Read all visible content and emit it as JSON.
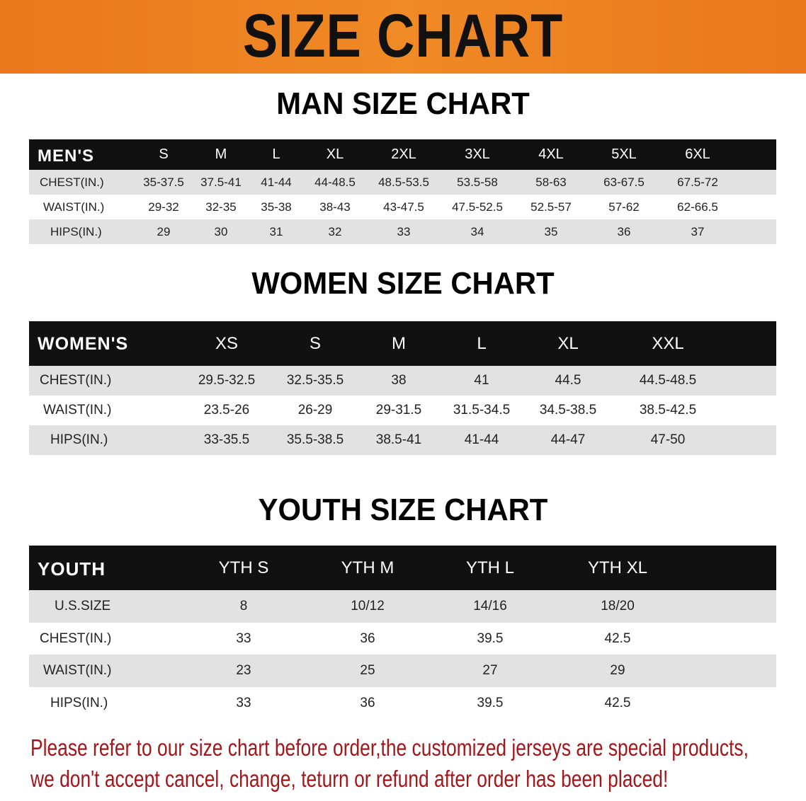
{
  "banner": {
    "title": "SIZE CHART",
    "color": "#ee8222"
  },
  "men": {
    "title": "MAN SIZE CHART",
    "header": [
      "MEN'S",
      "S",
      "M",
      "L",
      "XL",
      "2XL",
      "3XL",
      "4XL",
      "5XL",
      "6XL"
    ],
    "rows": [
      [
        "CHEST(IN.)",
        "35-37.5",
        "37.5-41",
        "41-44",
        "44-48.5",
        "48.5-53.5",
        "53.5-58",
        "58-63",
        "63-67.5",
        "67.5-72"
      ],
      [
        "WAIST(IN.)",
        "29-32",
        "32-35",
        "35-38",
        "38-43",
        "43-47.5",
        "47.5-52.5",
        "52.5-57",
        "57-62",
        "62-66.5"
      ],
      [
        "HIPS(IN.)",
        "29",
        "30",
        "31",
        "32",
        "33",
        "34",
        "35",
        "36",
        "37"
      ]
    ]
  },
  "women": {
    "title": "WOMEN SIZE CHART",
    "header": [
      "WOMEN'S",
      "XS",
      "S",
      "M",
      "L",
      "XL",
      "XXL"
    ],
    "rows": [
      [
        "CHEST(IN.)",
        "29.5-32.5",
        "32.5-35.5",
        "38",
        "41",
        "44.5",
        "44.5-48.5"
      ],
      [
        "WAIST(IN.)",
        "23.5-26",
        "26-29",
        "29-31.5",
        "31.5-34.5",
        "34.5-38.5",
        "38.5-42.5"
      ],
      [
        "HIPS(IN.)",
        "33-35.5",
        "35.5-38.5",
        "38.5-41",
        "41-44",
        "44-47",
        "47-50"
      ]
    ]
  },
  "youth": {
    "title": "YOUTH SIZE CHART",
    "header": [
      "YOUTH",
      "YTH S",
      "YTH M",
      "YTH L",
      "YTH XL"
    ],
    "rows": [
      [
        "U.S.SIZE",
        "8",
        "10/12",
        "14/16",
        "18/20"
      ],
      [
        "CHEST(IN.)",
        "33",
        "36",
        "39.5",
        "42.5"
      ],
      [
        "WAIST(IN.)",
        "23",
        "25",
        "27",
        "29"
      ],
      [
        "HIPS(IN.)",
        "33",
        "36",
        "39.5",
        "42.5"
      ]
    ]
  },
  "notice": {
    "line1": "Please refer to our size chart before order,the customized jerseys are special products,",
    "line2": "we don't accept cancel, change, teturn or refund after order has been placed!",
    "color": "#a3161a"
  }
}
